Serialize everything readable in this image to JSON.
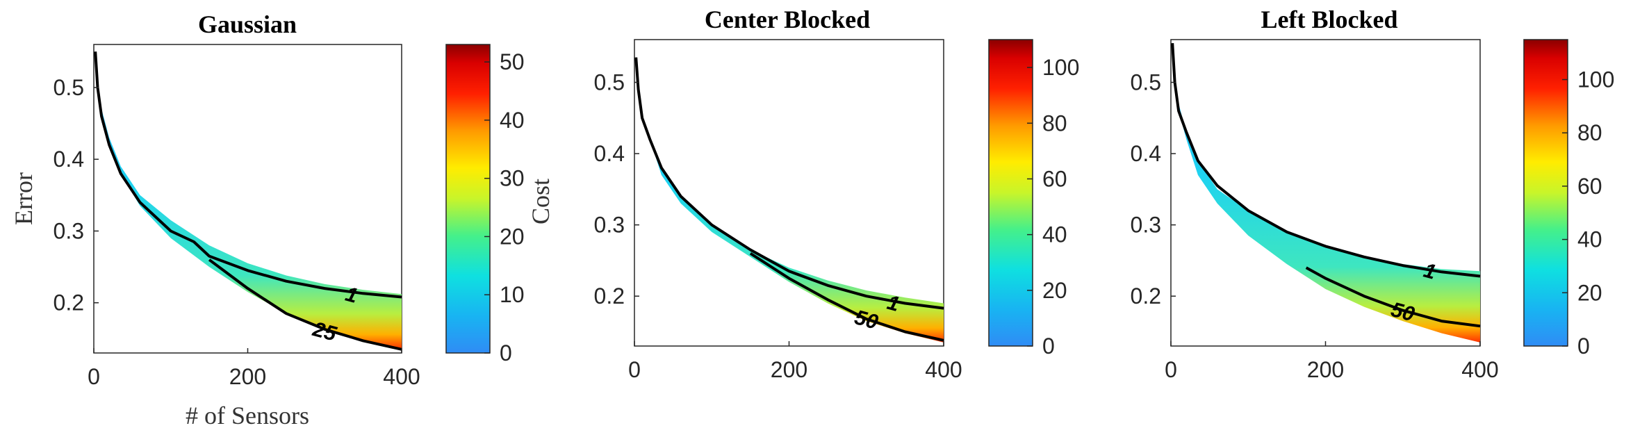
{
  "chart_data": [
    {
      "type": "contour",
      "title": "Gaussian",
      "xlabel": "# of Sensors",
      "ylabel": "Error",
      "colorbar_label": "Cost",
      "colormap": "jet",
      "xlim": [
        0,
        400
      ],
      "ylim": [
        0.13,
        0.56
      ],
      "xticks": [
        0,
        200,
        400
      ],
      "yticks": [
        0.2,
        0.3,
        0.4,
        0.5
      ],
      "clim": [
        0,
        53
      ],
      "cticks": [
        0,
        10,
        20,
        30,
        40,
        50
      ],
      "upper_boundary": {
        "x": [
          2,
          5,
          10,
          20,
          35,
          60,
          100,
          150,
          200,
          250,
          300,
          350,
          400
        ],
        "y": [
          0.55,
          0.51,
          0.47,
          0.43,
          0.39,
          0.35,
          0.315,
          0.28,
          0.255,
          0.238,
          0.226,
          0.218,
          0.212
        ]
      },
      "lower_boundary": {
        "x": [
          2,
          5,
          10,
          20,
          35,
          60,
          100,
          150,
          200,
          250,
          300,
          350,
          400
        ],
        "y": [
          0.55,
          0.5,
          0.46,
          0.42,
          0.38,
          0.335,
          0.29,
          0.25,
          0.215,
          0.185,
          0.163,
          0.147,
          0.135
        ]
      },
      "contours": [
        {
          "level": "1",
          "x": [
            2,
            5,
            10,
            20,
            35,
            60,
            100,
            130,
            150,
            200,
            250,
            300,
            350,
            400
          ],
          "y": [
            0.55,
            0.5,
            0.46,
            0.42,
            0.38,
            0.34,
            0.3,
            0.285,
            0.265,
            0.245,
            0.23,
            0.22,
            0.213,
            0.208
          ],
          "label_x": 335,
          "label_y": 0.211
        },
        {
          "level": "25",
          "x": [
            150,
            200,
            250,
            300,
            350,
            400
          ],
          "y": [
            0.26,
            0.22,
            0.185,
            0.163,
            0.147,
            0.135
          ],
          "label_x": 300,
          "label_y": 0.16
        }
      ]
    },
    {
      "type": "contour",
      "title": "Center Blocked",
      "xlabel": "",
      "ylabel": "",
      "colorbar_label": "",
      "colormap": "jet",
      "xlim": [
        0,
        400
      ],
      "ylim": [
        0.13,
        0.56
      ],
      "xticks": [
        0,
        200,
        400
      ],
      "yticks": [
        0.2,
        0.3,
        0.4,
        0.5
      ],
      "clim": [
        0,
        110
      ],
      "cticks": [
        0,
        20,
        40,
        60,
        80,
        100
      ],
      "upper_boundary": {
        "x": [
          2,
          5,
          10,
          20,
          35,
          60,
          100,
          150,
          200,
          250,
          300,
          350,
          400
        ],
        "y": [
          0.54,
          0.5,
          0.46,
          0.42,
          0.38,
          0.34,
          0.3,
          0.265,
          0.24,
          0.222,
          0.208,
          0.198,
          0.19
        ]
      },
      "lower_boundary": {
        "x": [
          2,
          5,
          10,
          20,
          35,
          60,
          100,
          150,
          200,
          250,
          300,
          350,
          400
        ],
        "y": [
          0.54,
          0.5,
          0.46,
          0.42,
          0.37,
          0.33,
          0.29,
          0.255,
          0.22,
          0.19,
          0.165,
          0.148,
          0.135
        ]
      },
      "contours": [
        {
          "level": "1",
          "x": [
            2,
            5,
            10,
            20,
            35,
            60,
            100,
            150,
            200,
            250,
            300,
            350,
            400
          ],
          "y": [
            0.535,
            0.49,
            0.45,
            0.42,
            0.38,
            0.34,
            0.3,
            0.265,
            0.235,
            0.215,
            0.2,
            0.19,
            0.183
          ],
          "label_x": 335,
          "label_y": 0.19
        },
        {
          "level": "50",
          "x": [
            150,
            200,
            250,
            300,
            350,
            400
          ],
          "y": [
            0.26,
            0.225,
            0.195,
            0.168,
            0.15,
            0.138
          ],
          "label_x": 300,
          "label_y": 0.167
        }
      ]
    },
    {
      "type": "contour",
      "title": "Left Blocked",
      "xlabel": "",
      "ylabel": "",
      "colorbar_label": "",
      "colormap": "jet",
      "xlim": [
        0,
        400
      ],
      "ylim": [
        0.13,
        0.56
      ],
      "xticks": [
        0,
        200,
        400
      ],
      "yticks": [
        0.2,
        0.3,
        0.4,
        0.5
      ],
      "clim": [
        0,
        115
      ],
      "cticks": [
        0,
        20,
        40,
        60,
        80,
        100
      ],
      "upper_boundary": {
        "x": [
          2,
          5,
          10,
          20,
          35,
          60,
          100,
          150,
          200,
          250,
          300,
          350,
          400
        ],
        "y": [
          0.56,
          0.51,
          0.47,
          0.43,
          0.39,
          0.35,
          0.32,
          0.29,
          0.27,
          0.255,
          0.245,
          0.238,
          0.235
        ]
      },
      "lower_boundary": {
        "x": [
          2,
          5,
          10,
          20,
          35,
          60,
          100,
          150,
          200,
          250,
          300,
          350,
          400
        ],
        "y": [
          0.56,
          0.5,
          0.46,
          0.42,
          0.37,
          0.33,
          0.285,
          0.245,
          0.21,
          0.185,
          0.165,
          0.148,
          0.135
        ]
      },
      "contours": [
        {
          "level": "1",
          "x": [
            2,
            5,
            10,
            20,
            35,
            60,
            100,
            150,
            200,
            250,
            300,
            350,
            400
          ],
          "y": [
            0.555,
            0.5,
            0.46,
            0.43,
            0.39,
            0.355,
            0.32,
            0.29,
            0.27,
            0.255,
            0.243,
            0.234,
            0.228
          ],
          "label_x": 335,
          "label_y": 0.235
        },
        {
          "level": "50",
          "x": [
            175,
            200,
            250,
            300,
            350,
            400
          ],
          "y": [
            0.24,
            0.225,
            0.2,
            0.18,
            0.165,
            0.158
          ],
          "label_x": 300,
          "label_y": 0.178
        }
      ]
    }
  ]
}
